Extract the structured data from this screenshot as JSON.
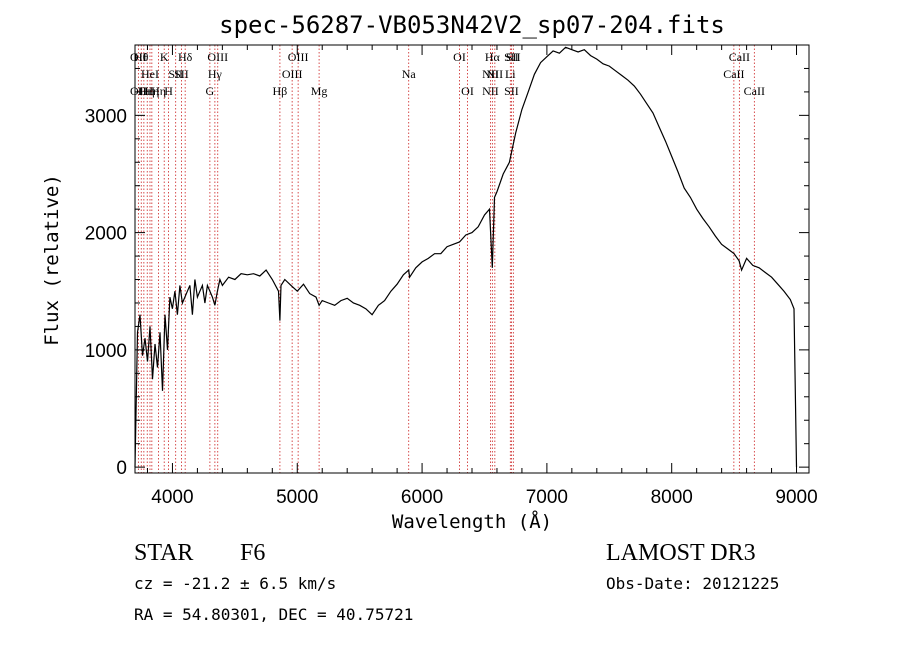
{
  "chart_data": {
    "type": "line",
    "title": "spec-56287-VB053N42V2_sp07-204.fits",
    "xlabel": "Wavelength (Å)",
    "ylabel": "Flux (relative)",
    "xlim": [
      3700,
      9100
    ],
    "ylim": [
      -50,
      3600
    ],
    "x_ticks": [
      4000,
      5000,
      6000,
      7000,
      8000,
      9000
    ],
    "y_ticks": [
      0,
      1000,
      2000,
      3000
    ],
    "x_minor_step": 200,
    "y_minor_step": 200,
    "series": [
      {
        "name": "spectrum",
        "x": [
          3700,
          3720,
          3740,
          3760,
          3780,
          3800,
          3820,
          3840,
          3860,
          3880,
          3900,
          3920,
          3940,
          3960,
          3980,
          4000,
          4020,
          4040,
          4060,
          4080,
          4100,
          4120,
          4140,
          4160,
          4180,
          4200,
          4220,
          4240,
          4260,
          4280,
          4300,
          4320,
          4340,
          4360,
          4380,
          4400,
          4450,
          4500,
          4550,
          4600,
          4650,
          4700,
          4750,
          4800,
          4850,
          4861,
          4870,
          4900,
          4950,
          5000,
          5050,
          5100,
          5150,
          5175,
          5200,
          5250,
          5300,
          5350,
          5400,
          5450,
          5500,
          5550,
          5600,
          5650,
          5700,
          5750,
          5800,
          5850,
          5893,
          5900,
          5950,
          6000,
          6050,
          6100,
          6150,
          6200,
          6250,
          6300,
          6350,
          6400,
          6450,
          6500,
          6540,
          6563,
          6580,
          6600,
          6650,
          6700,
          6750,
          6800,
          6850,
          6900,
          6950,
          7000,
          7050,
          7100,
          7150,
          7200,
          7250,
          7300,
          7350,
          7400,
          7450,
          7500,
          7550,
          7600,
          7650,
          7700,
          7750,
          7800,
          7850,
          7900,
          7950,
          8000,
          8050,
          8100,
          8150,
          8200,
          8250,
          8300,
          8350,
          8400,
          8450,
          8500,
          8540,
          8560,
          8600,
          8650,
          8700,
          8750,
          8800,
          8850,
          8900,
          8950,
          8980,
          9000
        ],
        "y": [
          0,
          1150,
          1300,
          950,
          1100,
          900,
          1200,
          750,
          1050,
          850,
          1150,
          650,
          1300,
          1000,
          1450,
          1350,
          1500,
          1300,
          1550,
          1400,
          1450,
          1500,
          1550,
          1300,
          1600,
          1450,
          1500,
          1550,
          1400,
          1550,
          1500,
          1450,
          1380,
          1500,
          1600,
          1550,
          1620,
          1600,
          1650,
          1640,
          1650,
          1630,
          1680,
          1600,
          1500,
          1250,
          1550,
          1600,
          1550,
          1500,
          1560,
          1480,
          1450,
          1380,
          1420,
          1400,
          1380,
          1420,
          1440,
          1400,
          1380,
          1350,
          1300,
          1380,
          1420,
          1500,
          1560,
          1640,
          1680,
          1620,
          1700,
          1750,
          1780,
          1820,
          1820,
          1880,
          1900,
          1920,
          1980,
          2000,
          2050,
          2150,
          2200,
          1700,
          2300,
          2350,
          2500,
          2600,
          2850,
          3050,
          3200,
          3350,
          3450,
          3500,
          3550,
          3530,
          3580,
          3560,
          3540,
          3560,
          3510,
          3480,
          3440,
          3420,
          3380,
          3340,
          3300,
          3250,
          3180,
          3100,
          3020,
          2900,
          2780,
          2650,
          2520,
          2380,
          2300,
          2200,
          2120,
          2050,
          1970,
          1900,
          1860,
          1820,
          1760,
          1680,
          1780,
          1720,
          1700,
          1660,
          1620,
          1560,
          1500,
          1430,
          1350,
          0
        ]
      }
    ],
    "line_markers": [
      {
        "w": 3727,
        "top": "OII",
        "mid": "",
        "bot": "OII"
      },
      {
        "w": 3750,
        "top": "Hθ",
        "mid": "",
        "bot": ""
      },
      {
        "w": 3771,
        "top": "",
        "mid": "",
        "bot": "Hι"
      },
      {
        "w": 3798,
        "top": "",
        "mid": "",
        "bot": "Hη"
      },
      {
        "w": 3820,
        "top": "",
        "mid": "HeI",
        "bot": ""
      },
      {
        "w": 3835,
        "top": "",
        "mid": "",
        "bot": "Hη"
      },
      {
        "w": 3889,
        "top": "",
        "mid": "",
        "bot": "Hη"
      },
      {
        "w": 3934,
        "top": "K",
        "mid": "",
        "bot": ""
      },
      {
        "w": 3969,
        "top": "",
        "mid": "",
        "bot": "H"
      },
      {
        "w": 4026,
        "top": "",
        "mid": "SII",
        "bot": ""
      },
      {
        "w": 4072,
        "top": "",
        "mid": "SII",
        "bot": ""
      },
      {
        "w": 4102,
        "top": "Hδ",
        "mid": "",
        "bot": ""
      },
      {
        "w": 4300,
        "top": "",
        "mid": "",
        "bot": "G"
      },
      {
        "w": 4340,
        "top": "",
        "mid": "Hγ",
        "bot": ""
      },
      {
        "w": 4363,
        "top": "OIII",
        "mid": "",
        "bot": ""
      },
      {
        "w": 4861,
        "top": "",
        "mid": "",
        "bot": "Hβ"
      },
      {
        "w": 4959,
        "top": "",
        "mid": "OIII",
        "bot": ""
      },
      {
        "w": 5007,
        "top": "OIII",
        "mid": "",
        "bot": ""
      },
      {
        "w": 5175,
        "top": "",
        "mid": "",
        "bot": "Mg"
      },
      {
        "w": 5893,
        "top": "",
        "mid": "Na",
        "bot": ""
      },
      {
        "w": 6300,
        "top": "OI",
        "mid": "",
        "bot": ""
      },
      {
        "w": 6364,
        "top": "",
        "mid": "",
        "bot": "OI"
      },
      {
        "w": 6548,
        "top": "",
        "mid": "NII",
        "bot": "NII"
      },
      {
        "w": 6563,
        "top": "Hα",
        "mid": "",
        "bot": ""
      },
      {
        "w": 6583,
        "top": "",
        "mid": "NII",
        "bot": ""
      },
      {
        "w": 6707,
        "top": "",
        "mid": "Li",
        "bot": ""
      },
      {
        "w": 6716,
        "top": "SII",
        "mid": "",
        "bot": "SII"
      },
      {
        "w": 6731,
        "top": "SII",
        "mid": "",
        "bot": ""
      },
      {
        "w": 8498,
        "top": "",
        "mid": "CaII",
        "bot": ""
      },
      {
        "w": 8542,
        "top": "CaII",
        "mid": "",
        "bot": ""
      },
      {
        "w": 8662,
        "top": "",
        "mid": "",
        "bot": "CaII"
      }
    ]
  },
  "info": {
    "object_class": "STAR",
    "subclass": "F6",
    "survey": "LAMOST DR3",
    "redshift": "cz = -21.2 ± 6.5 km/s",
    "obs_date": "Obs-Date: 20121225",
    "coords": "RA =  54.80301, DEC =  40.75721"
  },
  "colors": {
    "spectrum": "#000000",
    "marker_line": "#cc2222",
    "axes": "#000000"
  }
}
